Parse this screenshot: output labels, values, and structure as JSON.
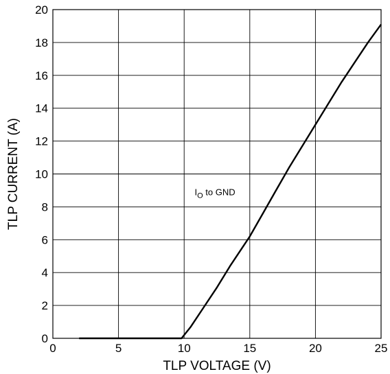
{
  "chart_data": {
    "type": "line",
    "title": "",
    "xlabel": "TLP VOLTAGE (V)",
    "ylabel": "TLP CURRENT (A)",
    "xlim": [
      0,
      25
    ],
    "ylim": [
      0,
      20
    ],
    "xticks": [
      0,
      5,
      10,
      15,
      20,
      25
    ],
    "yticks": [
      0,
      2,
      4,
      6,
      8,
      10,
      12,
      14,
      16,
      18,
      20
    ],
    "grid": true,
    "annotation": {
      "main": "I",
      "subscript": "O",
      "suffix": " to GND",
      "x": 10.8,
      "y": 8.7
    },
    "series": [
      {
        "x": [
          2.0,
          5.0,
          9.0,
          9.8,
          10.5,
          11.5,
          12.5,
          13.5,
          14.5,
          15.0,
          16.0,
          17.0,
          18.0,
          19.0,
          20.0,
          21.0,
          22.0,
          23.0,
          24.0,
          25.0
        ],
        "y": [
          0.0,
          0.0,
          0.0,
          0.0,
          0.7,
          1.9,
          3.1,
          4.4,
          5.6,
          6.2,
          7.6,
          9.0,
          10.4,
          11.7,
          13.0,
          14.3,
          15.6,
          16.8,
          18.0,
          19.1
        ]
      }
    ]
  }
}
